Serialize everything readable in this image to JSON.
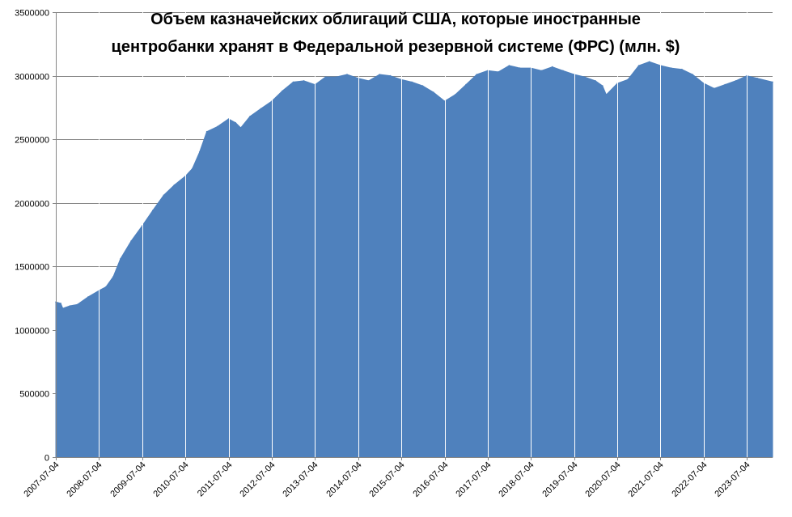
{
  "chart_data": {
    "type": "area",
    "title_lines": [
      "Объем казначейских облигаций США, которые иностранные",
      "центробанки хранят в Федеральной резервной системе (ФРС) (млн. $)"
    ],
    "xlabel": "",
    "ylabel": "",
    "ylim": [
      0,
      3500000
    ],
    "y_ticks": [
      "0",
      "500000",
      "1000000",
      "1500000",
      "2000000",
      "2500000",
      "3000000",
      "3500000"
    ],
    "x_ticks": [
      "2007-07-04",
      "2008-07-04",
      "2009-07-04",
      "2010-07-04",
      "2011-07-04",
      "2012-07-04",
      "2013-07-04",
      "2014-07-04",
      "2015-07-04",
      "2016-07-04",
      "2017-07-04",
      "2018-07-04",
      "2019-07-04",
      "2020-07-04",
      "2021-07-04",
      "2022-07-04",
      "2023-07-04"
    ],
    "x_range": [
      "2007-07-04",
      "2024-02-07"
    ],
    "grid": "horizontal",
    "series_color": "#4f81bd",
    "values": [
      [
        "2007-07-04",
        1220000
      ],
      [
        "2007-08-15",
        1210000
      ],
      [
        "2007-09-01",
        1170000
      ],
      [
        "2007-11-01",
        1190000
      ],
      [
        "2008-01-01",
        1200000
      ],
      [
        "2008-04-01",
        1260000
      ],
      [
        "2008-07-04",
        1310000
      ],
      [
        "2008-09-01",
        1340000
      ],
      [
        "2008-11-01",
        1420000
      ],
      [
        "2009-01-01",
        1560000
      ],
      [
        "2009-04-01",
        1700000
      ],
      [
        "2009-07-04",
        1820000
      ],
      [
        "2009-10-01",
        1940000
      ],
      [
        "2010-01-01",
        2060000
      ],
      [
        "2010-04-01",
        2140000
      ],
      [
        "2010-07-04",
        2210000
      ],
      [
        "2010-09-01",
        2270000
      ],
      [
        "2010-11-01",
        2400000
      ],
      [
        "2011-01-01",
        2560000
      ],
      [
        "2011-04-01",
        2600000
      ],
      [
        "2011-07-04",
        2660000
      ],
      [
        "2011-09-01",
        2630000
      ],
      [
        "2011-10-15",
        2590000
      ],
      [
        "2012-01-01",
        2680000
      ],
      [
        "2012-04-01",
        2740000
      ],
      [
        "2012-07-04",
        2800000
      ],
      [
        "2012-10-01",
        2880000
      ],
      [
        "2013-01-01",
        2950000
      ],
      [
        "2013-04-01",
        2960000
      ],
      [
        "2013-07-04",
        2930000
      ],
      [
        "2013-10-01",
        2990000
      ],
      [
        "2014-01-01",
        2990000
      ],
      [
        "2014-04-01",
        3010000
      ],
      [
        "2014-07-04",
        2980000
      ],
      [
        "2014-10-01",
        2960000
      ],
      [
        "2015-01-01",
        3010000
      ],
      [
        "2015-04-01",
        3000000
      ],
      [
        "2015-07-04",
        2970000
      ],
      [
        "2015-10-01",
        2950000
      ],
      [
        "2016-01-01",
        2920000
      ],
      [
        "2016-04-01",
        2870000
      ],
      [
        "2016-07-04",
        2800000
      ],
      [
        "2016-10-01",
        2850000
      ],
      [
        "2017-01-01",
        2930000
      ],
      [
        "2017-04-01",
        3010000
      ],
      [
        "2017-07-04",
        3040000
      ],
      [
        "2017-10-01",
        3030000
      ],
      [
        "2018-01-01",
        3080000
      ],
      [
        "2018-04-01",
        3060000
      ],
      [
        "2018-07-04",
        3060000
      ],
      [
        "2018-10-01",
        3040000
      ],
      [
        "2019-01-01",
        3070000
      ],
      [
        "2019-04-01",
        3040000
      ],
      [
        "2019-07-04",
        3010000
      ],
      [
        "2019-10-01",
        2990000
      ],
      [
        "2020-01-01",
        2960000
      ],
      [
        "2020-03-01",
        2920000
      ],
      [
        "2020-04-01",
        2850000
      ],
      [
        "2020-07-04",
        2940000
      ],
      [
        "2020-10-01",
        2970000
      ],
      [
        "2021-01-01",
        3080000
      ],
      [
        "2021-04-01",
        3110000
      ],
      [
        "2021-07-04",
        3080000
      ],
      [
        "2021-10-01",
        3060000
      ],
      [
        "2022-01-01",
        3050000
      ],
      [
        "2022-04-01",
        3010000
      ],
      [
        "2022-07-04",
        2940000
      ],
      [
        "2022-10-01",
        2900000
      ],
      [
        "2023-01-01",
        2930000
      ],
      [
        "2023-04-01",
        2960000
      ],
      [
        "2023-07-04",
        3000000
      ],
      [
        "2023-10-01",
        2980000
      ],
      [
        "2024-02-07",
        2950000
      ]
    ]
  }
}
